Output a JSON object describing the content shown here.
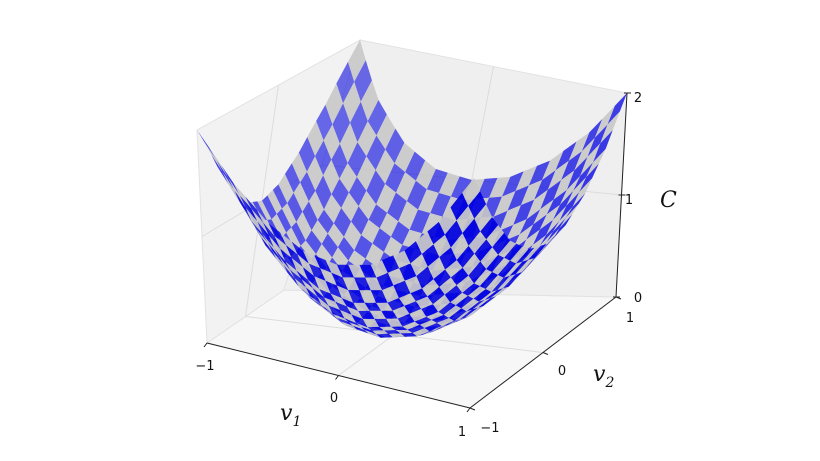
{
  "chart_data": {
    "type": "surface",
    "xlabel": "v",
    "xlabel_sub": "1",
    "ylabel": "v",
    "ylabel_sub": "2",
    "zlabel": "C",
    "xlim": [
      -1,
      1
    ],
    "ylim": [
      -1,
      1
    ],
    "zlim": [
      0,
      2
    ],
    "xticks": [
      "−1",
      "0",
      "1"
    ],
    "yticks": [
      "−1",
      "0",
      "1"
    ],
    "zticks": [
      "0",
      "1",
      "2"
    ],
    "grid": true,
    "colors": {
      "checker_a": "#0000e0",
      "checker_b": "#c8c8c8",
      "pane": "#f2f2f2"
    },
    "x": [
      -1,
      -0.75,
      -0.5,
      -0.25,
      0,
      0.25,
      0.5,
      0.75,
      1
    ],
    "y": [
      -1,
      -0.75,
      -0.5,
      -0.25,
      0,
      0.25,
      0.5,
      0.75,
      1
    ],
    "z": [
      [
        2,
        1.5625,
        1.25,
        1.0625,
        1,
        1.0625,
        1.25,
        1.5625,
        2
      ],
      [
        1.5625,
        1.125,
        0.8125,
        0.625,
        0.5625,
        0.625,
        0.8125,
        1.125,
        1.5625
      ],
      [
        1.25,
        0.8125,
        0.5,
        0.3125,
        0.25,
        0.3125,
        0.5,
        0.8125,
        1.25
      ],
      [
        1.0625,
        0.625,
        0.3125,
        0.125,
        0.0625,
        0.125,
        0.3125,
        0.625,
        1.0625
      ],
      [
        1,
        0.5625,
        0.25,
        0.0625,
        0,
        0.0625,
        0.25,
        0.5625,
        1
      ],
      [
        1.0625,
        0.625,
        0.3125,
        0.125,
        0.0625,
        0.125,
        0.3125,
        0.625,
        1.0625
      ],
      [
        1.25,
        0.8125,
        0.5,
        0.3125,
        0.25,
        0.3125,
        0.5,
        0.8125,
        1.25
      ],
      [
        1.5625,
        1.125,
        0.8125,
        0.625,
        0.5625,
        0.625,
        0.8125,
        1.125,
        1.5625
      ],
      [
        2,
        1.5625,
        1.25,
        1.0625,
        1,
        1.0625,
        1.25,
        1.5625,
        2
      ]
    ]
  }
}
